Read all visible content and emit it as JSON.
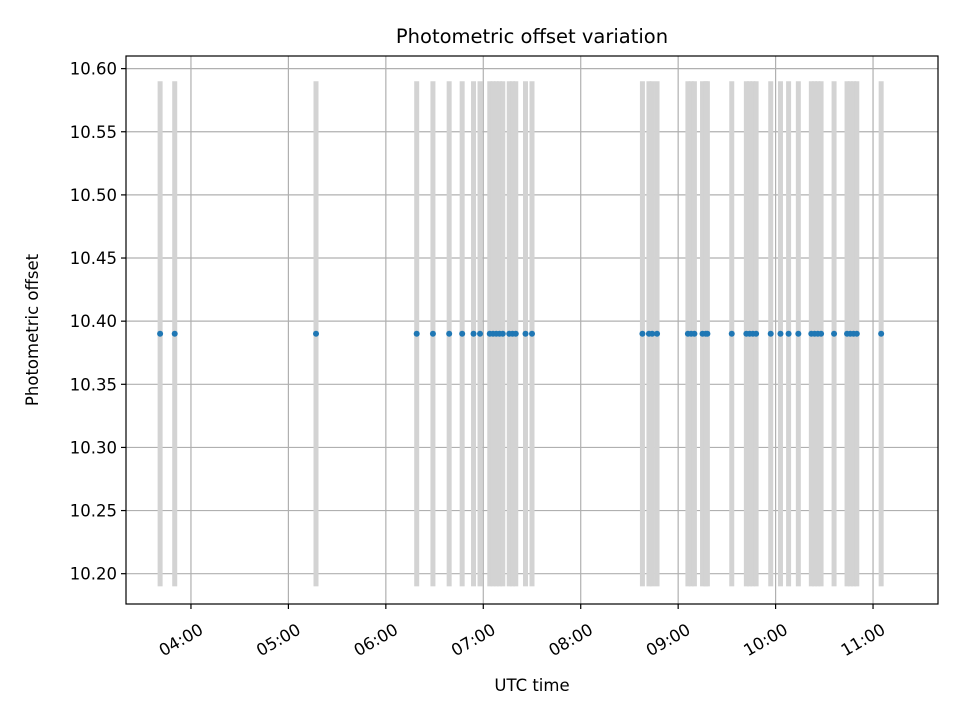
{
  "chart_data": {
    "type": "scatter",
    "title": "Photometric offset variation",
    "xlabel": "UTC time",
    "ylabel": "Photometric offset",
    "xlim": [
      "03:20",
      "11:40"
    ],
    "ylim": [
      10.176,
      10.61
    ],
    "grid": true,
    "x_ticks": [
      "04:00",
      "05:00",
      "06:00",
      "07:00",
      "08:00",
      "09:00",
      "10:00",
      "11:00"
    ],
    "y_ticks": [
      "10.20",
      "10.25",
      "10.30",
      "10.35",
      "10.40",
      "10.45",
      "10.50",
      "10.55",
      "10.60"
    ],
    "marker_color": "#1f77b4",
    "band_color": "#d3d3d3",
    "band_range": [
      10.19,
      10.59
    ],
    "series": [
      {
        "x": [
          "03:41",
          "03:50",
          "05:17",
          "06:19",
          "06:29",
          "06:39",
          "06:47",
          "06:54",
          "06:58",
          "07:04",
          "07:06",
          "07:08",
          "07:10",
          "07:12",
          "07:16",
          "07:18",
          "07:20",
          "07:26",
          "07:30",
          "08:38",
          "08:42",
          "08:44",
          "08:47",
          "09:06",
          "09:08",
          "09:10",
          "09:15",
          "09:17",
          "09:18",
          "09:33",
          "09:42",
          "09:44",
          "09:46",
          "09:48",
          "09:57",
          "10:03",
          "10:08",
          "10:14",
          "10:22",
          "10:24",
          "10:26",
          "10:28",
          "10:36",
          "10:44",
          "10:46",
          "10:48",
          "10:50",
          "11:05"
        ],
        "values": [
          10.39,
          10.39,
          10.39,
          10.39,
          10.39,
          10.39,
          10.39,
          10.39,
          10.39,
          10.39,
          10.39,
          10.39,
          10.39,
          10.39,
          10.39,
          10.39,
          10.39,
          10.39,
          10.39,
          10.39,
          10.39,
          10.39,
          10.39,
          10.39,
          10.39,
          10.39,
          10.39,
          10.39,
          10.39,
          10.39,
          10.39,
          10.39,
          10.39,
          10.39,
          10.39,
          10.39,
          10.39,
          10.39,
          10.39,
          10.39,
          10.39,
          10.39,
          10.39,
          10.39,
          10.39,
          10.39,
          10.39,
          10.39
        ]
      }
    ]
  }
}
